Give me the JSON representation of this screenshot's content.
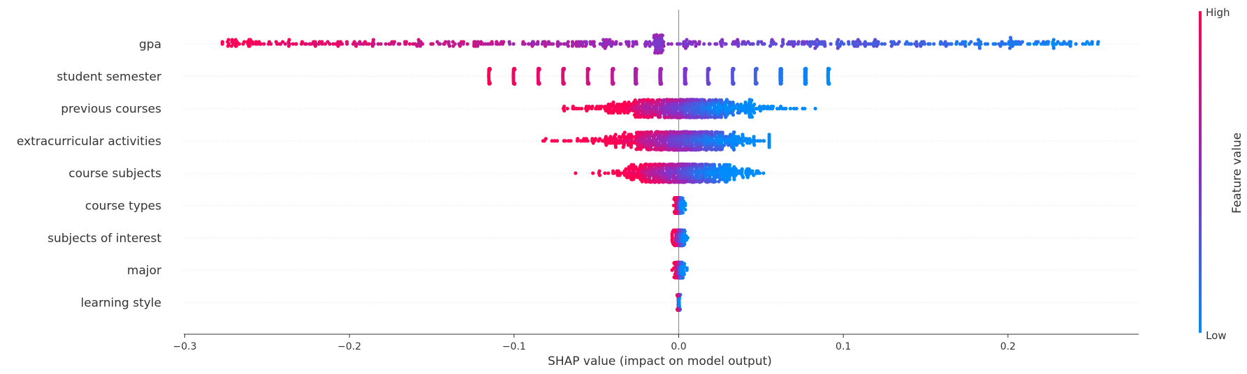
{
  "chart_data": {
    "type": "scatter",
    "subtype": "shap-beeswarm",
    "title": "",
    "xlabel": "SHAP value (impact on model output)",
    "xlim": [
      -0.3,
      0.28
    ],
    "xticks": [
      -0.3,
      -0.2,
      -0.1,
      0.0,
      0.1,
      0.2
    ],
    "xtick_labels": [
      "−0.3",
      "−0.2",
      "−0.1",
      "0.0",
      "0.1",
      "0.2"
    ],
    "grid": false,
    "colormap": {
      "low": "#008bfb",
      "mid": "#8b2ec4",
      "high": "#ff0052"
    },
    "colorbar": {
      "title": "Feature value",
      "high_label": "High",
      "low_label": "Low",
      "placement": "right"
    },
    "features": [
      {
        "name": "gpa",
        "min": -0.278,
        "max": 0.257,
        "points": 600,
        "spread": 0.25,
        "pattern": "gradient_wide"
      },
      {
        "name": "student semester",
        "pattern": "clusters",
        "clusters": [
          {
            "x": -0.115,
            "v": 1.0
          },
          {
            "x": -0.1,
            "v": 0.95
          },
          {
            "x": -0.085,
            "v": 0.9
          },
          {
            "x": -0.07,
            "v": 0.85
          },
          {
            "x": -0.055,
            "v": 0.8
          },
          {
            "x": -0.04,
            "v": 0.72
          },
          {
            "x": -0.026,
            "v": 0.65
          },
          {
            "x": -0.011,
            "v": 0.58
          },
          {
            "x": 0.004,
            "v": 0.45
          },
          {
            "x": 0.018,
            "v": 0.38
          },
          {
            "x": 0.033,
            "v": 0.3
          },
          {
            "x": 0.047,
            "v": 0.22
          },
          {
            "x": 0.062,
            "v": 0.12
          },
          {
            "x": 0.077,
            "v": 0.05
          },
          {
            "x": 0.091,
            "v": 0.0
          }
        ]
      },
      {
        "name": "previous courses",
        "min": -0.07,
        "max": 0.083,
        "center": 0.0,
        "points": 700,
        "spread": 0.026,
        "pattern": "dense_center"
      },
      {
        "name": "extracurricular activities",
        "min": -0.084,
        "max": 0.055,
        "center": 0.0,
        "points": 700,
        "spread": 0.022,
        "pattern": "dense_center"
      },
      {
        "name": "course subjects",
        "min": -0.066,
        "max": 0.055,
        "center": 0.0,
        "points": 600,
        "spread": 0.02,
        "pattern": "dense_center"
      },
      {
        "name": "course types",
        "min": -0.003,
        "max": 0.004,
        "center": 0.0,
        "points": 160,
        "spread": 0.0015,
        "pattern": "narrow"
      },
      {
        "name": "subjects of interest",
        "min": -0.004,
        "max": 0.008,
        "center": 0.0,
        "points": 160,
        "spread": 0.002,
        "pattern": "narrow"
      },
      {
        "name": "major",
        "min": -0.004,
        "max": 0.005,
        "center": 0.0,
        "points": 160,
        "spread": 0.0015,
        "pattern": "narrow"
      },
      {
        "name": "learning style",
        "min": -0.001,
        "max": 0.001,
        "center": 0.0,
        "points": 150,
        "spread": 0.0004,
        "pattern": "narrow"
      }
    ]
  }
}
